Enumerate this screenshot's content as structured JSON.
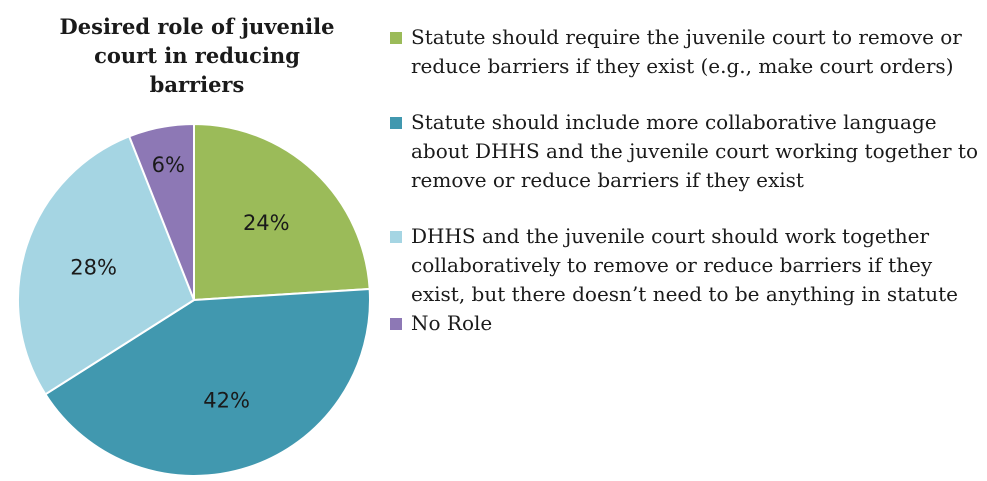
{
  "chart_data": {
    "type": "pie",
    "title": "Desired role of juvenile court in reducing barriers",
    "slices": [
      {
        "label": "Statute should require the juvenile court to remove or reduce barriers if they exist (e.g., make court orders)",
        "value": 24,
        "display": "24%",
        "color": "#9bbb59"
      },
      {
        "label": "Statute should include more collaborative language about DHHS and the juvenile court working together to remove or reduce barriers if they exist",
        "value": 42,
        "display": "42%",
        "color": "#4198af"
      },
      {
        "label": "DHHS and the juvenile court should work together collaboratively to remove or reduce barriers if they exist, but there doesn’t need to be anything in statute",
        "value": 28,
        "display": "28%",
        "color": "#a5d5e3"
      },
      {
        "label": "No Role",
        "value": 6,
        "display": "6%",
        "color": "#8d78b5"
      }
    ],
    "legend_position": "right"
  }
}
